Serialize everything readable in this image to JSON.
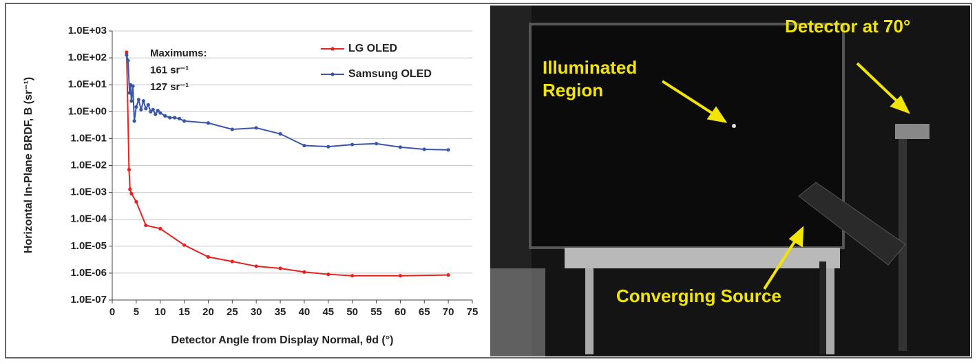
{
  "chart_data": {
    "type": "line",
    "log_y": true,
    "grid": true,
    "xlabel": "Detector Angle from Display Normal, θd (°)",
    "ylabel": "Horizontal In-Plane BRDF, B (sr⁻¹)",
    "xlim": [
      0,
      75
    ],
    "xticks": [
      0,
      5,
      10,
      15,
      20,
      25,
      30,
      35,
      40,
      45,
      50,
      55,
      60,
      65,
      70,
      75
    ],
    "ylim": [
      1e-07,
      1000
    ],
    "yticks": [
      {
        "value": 1e-07,
        "label": "1.0E-07"
      },
      {
        "value": 1e-06,
        "label": "1.0E-06"
      },
      {
        "value": 1e-05,
        "label": "1.0E-05"
      },
      {
        "value": 0.0001,
        "label": "1.0E-04"
      },
      {
        "value": 0.001,
        "label": "1.0E-03"
      },
      {
        "value": 0.01,
        "label": "1.0E-02"
      },
      {
        "value": 0.1,
        "label": "1.0E-01"
      },
      {
        "value": 1,
        "label": "1.0E+00"
      },
      {
        "value": 10,
        "label": "1.0E+01"
      },
      {
        "value": 100,
        "label": "1.0E+02"
      },
      {
        "value": 1000,
        "label": "1.0E+03"
      }
    ],
    "series": [
      {
        "name": "LG OLED",
        "color": "#e8201f",
        "x": [
          3,
          3.5,
          3.7,
          4,
          5,
          7,
          10,
          15,
          20,
          25,
          30,
          35,
          40,
          45,
          50,
          60,
          70
        ],
        "values": [
          161,
          0.007,
          0.0013,
          0.0009,
          0.00045,
          6e-05,
          4.5e-05,
          1.1e-05,
          4e-06,
          2.7e-06,
          1.8e-06,
          1.5e-06,
          1.1e-06,
          9e-07,
          8e-07,
          8e-07,
          8.5e-07
        ]
      },
      {
        "name": "Samsung OLED",
        "color": "#3a56a8",
        "x": [
          3,
          3.3,
          3.6,
          3.8,
          4,
          4.3,
          4.6,
          5,
          5.5,
          6,
          6.5,
          7,
          7.5,
          8,
          8.5,
          9,
          9.5,
          10,
          11,
          12,
          13,
          14,
          15,
          20,
          25,
          30,
          35,
          40,
          45,
          50,
          55,
          60,
          65,
          70
        ],
        "values": [
          127,
          80,
          5,
          10,
          2.5,
          9,
          0.45,
          1.5,
          2.8,
          1.2,
          2.5,
          1.3,
          1.8,
          1.0,
          1.2,
          0.8,
          1.1,
          0.9,
          0.7,
          0.6,
          0.6,
          0.55,
          0.45,
          0.38,
          0.22,
          0.25,
          0.15,
          0.055,
          0.05,
          0.06,
          0.065,
          0.048,
          0.04,
          0.038
        ]
      }
    ],
    "annotations": [
      {
        "text": "Maximums:"
      },
      {
        "text": "161 sr⁻¹",
        "color": "#e8201f"
      },
      {
        "text": "127 sr⁻¹",
        "color": "#3a56a8"
      }
    ]
  },
  "photo": {
    "illuminated_region": [
      "Illuminated",
      "Region"
    ],
    "detector": "Detector at 70°",
    "source": "Converging Source"
  }
}
